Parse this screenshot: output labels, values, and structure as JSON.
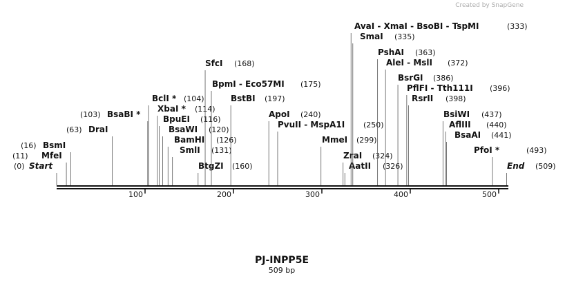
{
  "header": {
    "credit": "Created by SnapGene"
  },
  "footer": {
    "title": "PJ-INPP5E",
    "subtitle": "509 bp"
  },
  "axis": {
    "length": 509,
    "ticks": [
      100,
      200,
      300,
      400,
      500
    ]
  },
  "sites": [
    {
      "name": "Start",
      "position": 0,
      "position_label": "(0)"
    },
    {
      "name": "MfeI",
      "position": 11,
      "position_label": "(11)"
    },
    {
      "name": "BsmI",
      "position": 16,
      "position_label": "(16)"
    },
    {
      "name": "DraI",
      "position": 63,
      "position_label": "(63)"
    },
    {
      "name": "BsaBI *",
      "position": 103,
      "position_label": "(103)"
    },
    {
      "name": "BclI *",
      "position": 104,
      "position_label": "(104)"
    },
    {
      "name": "XbaI *",
      "position": 114,
      "position_label": "(114)"
    },
    {
      "name": "BpuEI",
      "position": 116,
      "position_label": "(116)"
    },
    {
      "name": "BsaWI",
      "position": 120,
      "position_label": "(120)"
    },
    {
      "name": "BamHI",
      "position": 126,
      "position_label": "(126)"
    },
    {
      "name": "SmlI",
      "position": 131,
      "position_label": "(131)"
    },
    {
      "name": "BtgZI",
      "position": 160,
      "position_label": "(160)"
    },
    {
      "name": "SfcI",
      "position": 168,
      "position_label": "(168)"
    },
    {
      "name": "BpmI  -  Eco57MI",
      "position": 175,
      "position_label": "(175)"
    },
    {
      "name": "BstBI",
      "position": 197,
      "position_label": "(197)"
    },
    {
      "name": "ApoI",
      "position": 240,
      "position_label": "(240)"
    },
    {
      "name": "PvuII  -  MspA1I",
      "position": 250,
      "position_label": "(250)"
    },
    {
      "name": "MmeI",
      "position": 299,
      "position_label": "(299)"
    },
    {
      "name": "ZraI",
      "position": 324,
      "position_label": "(324)"
    },
    {
      "name": "AatII",
      "position": 326,
      "position_label": "(326)"
    },
    {
      "name": "AvaI  -  XmaI  -  BsoBI  -  TspMI",
      "position": 333,
      "position_label": "(333)"
    },
    {
      "name": "SmaI",
      "position": 335,
      "position_label": "(335)"
    },
    {
      "name": "PshAI",
      "position": 363,
      "position_label": "(363)"
    },
    {
      "name": "AleI  -  MslI",
      "position": 372,
      "position_label": "(372)"
    },
    {
      "name": "BsrGI",
      "position": 386,
      "position_label": "(386)"
    },
    {
      "name": "PflFI  -  Tth111I",
      "position": 396,
      "position_label": "(396)"
    },
    {
      "name": "RsrII",
      "position": 398,
      "position_label": "(398)"
    },
    {
      "name": "BsiWI",
      "position": 437,
      "position_label": "(437)"
    },
    {
      "name": "AflIII",
      "position": 440,
      "position_label": "(440)"
    },
    {
      "name": "BsaAI",
      "position": 441,
      "position_label": "(441)"
    },
    {
      "name": "PfoI *",
      "position": 493,
      "position_label": "(493)"
    },
    {
      "name": "End",
      "position": 509,
      "position_label": "(509)"
    }
  ]
}
